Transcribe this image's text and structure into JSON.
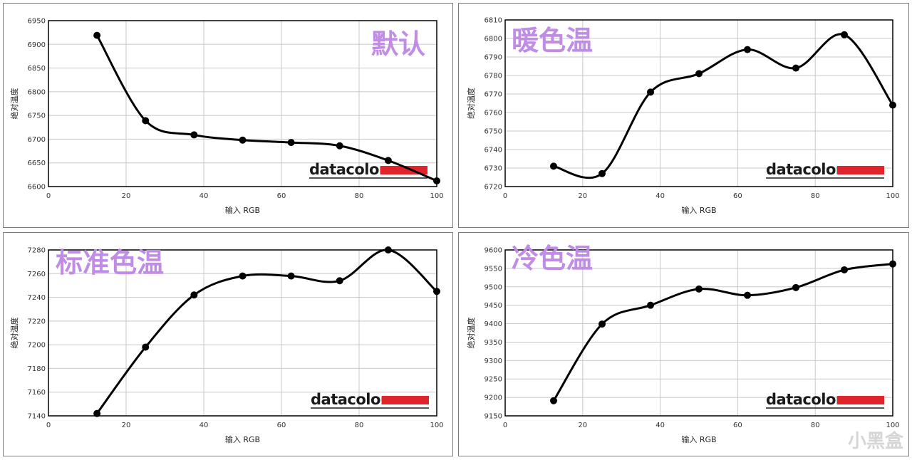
{
  "watermark": "小黑盒",
  "chart_data": [
    {
      "type": "line",
      "title": "默认",
      "xlabel": "输入 RGB",
      "ylabel": "绝对温度",
      "brand": "datacolor",
      "xlim": [
        0,
        100
      ],
      "ylim": [
        6600,
        6950
      ],
      "xticks": [
        0,
        20,
        40,
        60,
        80,
        100
      ],
      "yticks": [
        6600,
        6650,
        6700,
        6750,
        6800,
        6850,
        6900,
        6950
      ],
      "x": [
        12.5,
        25,
        37.5,
        50,
        62.5,
        75,
        87.5,
        100
      ],
      "y": [
        6919,
        6739,
        6709,
        6698,
        6693,
        6686,
        6655,
        6612
      ],
      "grid": true
    },
    {
      "type": "line",
      "title": "暖色温",
      "xlabel": "输入 RGB",
      "ylabel": "绝对温度",
      "brand": "datacolor",
      "xlim": [
        0,
        100
      ],
      "ylim": [
        6720,
        6810
      ],
      "xticks": [
        0,
        20,
        40,
        60,
        80,
        100
      ],
      "yticks": [
        6720,
        6730,
        6740,
        6750,
        6760,
        6770,
        6780,
        6790,
        6800,
        6810
      ],
      "x": [
        12.5,
        25,
        37.5,
        50,
        62.5,
        75,
        87.5,
        100
      ],
      "y": [
        6731,
        6727,
        6771,
        6781,
        6794,
        6784,
        6802,
        6764
      ],
      "grid": true
    },
    {
      "type": "line",
      "title": "标准色温",
      "xlabel": "输入 RGB",
      "ylabel": "绝对温度",
      "brand": "datacolor",
      "xlim": [
        0,
        100
      ],
      "ylim": [
        7140,
        7280
      ],
      "xticks": [
        0,
        20,
        40,
        60,
        80,
        100
      ],
      "yticks": [
        7140,
        7160,
        7180,
        7200,
        7220,
        7240,
        7260,
        7280
      ],
      "x": [
        12.5,
        25,
        37.5,
        50,
        62.5,
        75,
        87.5,
        100
      ],
      "y": [
        7142,
        7198,
        7242,
        7258,
        7258,
        7254,
        7280,
        7245
      ],
      "grid": true
    },
    {
      "type": "line",
      "title": "冷色温",
      "xlabel": "输入 RGB",
      "ylabel": "绝对温度",
      "brand": "datacolor",
      "xlim": [
        0,
        100
      ],
      "ylim": [
        9150,
        9600
      ],
      "xticks": [
        0,
        20,
        40,
        60,
        80,
        100
      ],
      "yticks": [
        9150,
        9200,
        9250,
        9300,
        9350,
        9400,
        9450,
        9500,
        9550,
        9600
      ],
      "x": [
        12.5,
        25,
        37.5,
        50,
        62.5,
        75,
        87.5,
        100
      ],
      "y": [
        9191,
        9399,
        9450,
        9494,
        9477,
        9498,
        9546,
        9562
      ],
      "grid": true
    }
  ]
}
